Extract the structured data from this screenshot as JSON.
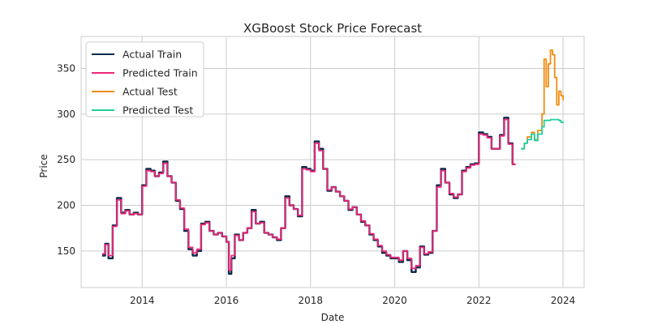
{
  "chart_data": {
    "type": "line",
    "title": "XGBoost Stock Price Forecast",
    "xlabel": "Date",
    "ylabel": "Price",
    "xlim": [
      2012.55,
      2024.5
    ],
    "ylim": [
      110,
      385
    ],
    "x_ticks": [
      2014,
      2016,
      2018,
      2020,
      2022,
      2024
    ],
    "y_ticks": [
      150,
      200,
      250,
      300,
      350
    ],
    "grid": true,
    "legend_position": "upper-left",
    "series": [
      {
        "name": "Actual Train",
        "color": "#0b2a4a",
        "x": [
          2013.05,
          2013.12,
          2013.2,
          2013.3,
          2013.4,
          2013.5,
          2013.6,
          2013.7,
          2013.8,
          2013.9,
          2014.0,
          2014.1,
          2014.2,
          2014.3,
          2014.4,
          2014.5,
          2014.6,
          2014.7,
          2014.8,
          2014.9,
          2015.0,
          2015.1,
          2015.2,
          2015.3,
          2015.4,
          2015.5,
          2015.6,
          2015.7,
          2015.8,
          2015.9,
          2016.0,
          2016.06,
          2016.12,
          2016.2,
          2016.3,
          2016.4,
          2016.5,
          2016.6,
          2016.7,
          2016.8,
          2016.9,
          2017.0,
          2017.1,
          2017.2,
          2017.3,
          2017.4,
          2017.5,
          2017.6,
          2017.7,
          2017.8,
          2017.9,
          2018.0,
          2018.1,
          2018.2,
          2018.3,
          2018.4,
          2018.5,
          2018.6,
          2018.7,
          2018.8,
          2018.9,
          2019.0,
          2019.1,
          2019.2,
          2019.3,
          2019.4,
          2019.5,
          2019.6,
          2019.7,
          2019.8,
          2019.9,
          2020.0,
          2020.1,
          2020.2,
          2020.3,
          2020.4,
          2020.5,
          2020.6,
          2020.7,
          2020.8,
          2020.9,
          2021.0,
          2021.1,
          2021.2,
          2021.3,
          2021.4,
          2021.5,
          2021.6,
          2021.7,
          2021.8,
          2021.9,
          2022.0,
          2022.1,
          2022.2,
          2022.3,
          2022.4,
          2022.5,
          2022.6,
          2022.7,
          2022.8,
          2022.86
        ],
        "y": [
          145,
          158,
          142,
          178,
          208,
          192,
          195,
          190,
          192,
          190,
          222,
          240,
          238,
          232,
          236,
          248,
          232,
          225,
          205,
          196,
          172,
          152,
          145,
          150,
          180,
          182,
          172,
          168,
          170,
          166,
          160,
          125,
          142,
          168,
          162,
          170,
          175,
          195,
          180,
          182,
          170,
          168,
          165,
          162,
          175,
          210,
          200,
          196,
          188,
          242,
          240,
          238,
          270,
          262,
          240,
          216,
          220,
          215,
          210,
          205,
          195,
          198,
          190,
          182,
          178,
          168,
          162,
          155,
          148,
          145,
          142,
          142,
          138,
          150,
          140,
          127,
          132,
          155,
          146,
          148,
          172,
          222,
          240,
          225,
          212,
          208,
          212,
          238,
          242,
          245,
          246,
          280,
          278,
          275,
          262,
          262,
          277,
          296,
          268,
          245,
          245
        ]
      },
      {
        "name": "Predicted Train",
        "color": "#f0267a",
        "x": [
          2013.05,
          2013.12,
          2013.2,
          2013.3,
          2013.4,
          2013.5,
          2013.6,
          2013.7,
          2013.8,
          2013.9,
          2014.0,
          2014.1,
          2014.2,
          2014.3,
          2014.4,
          2014.5,
          2014.6,
          2014.7,
          2014.8,
          2014.9,
          2015.0,
          2015.1,
          2015.2,
          2015.3,
          2015.4,
          2015.5,
          2015.6,
          2015.7,
          2015.8,
          2015.9,
          2016.0,
          2016.06,
          2016.12,
          2016.2,
          2016.3,
          2016.4,
          2016.5,
          2016.6,
          2016.7,
          2016.8,
          2016.9,
          2017.0,
          2017.1,
          2017.2,
          2017.3,
          2017.4,
          2017.5,
          2017.6,
          2017.7,
          2017.8,
          2017.9,
          2018.0,
          2018.1,
          2018.2,
          2018.3,
          2018.4,
          2018.5,
          2018.6,
          2018.7,
          2018.8,
          2018.9,
          2019.0,
          2019.1,
          2019.2,
          2019.3,
          2019.4,
          2019.5,
          2019.6,
          2019.7,
          2019.8,
          2019.9,
          2020.0,
          2020.1,
          2020.2,
          2020.3,
          2020.4,
          2020.5,
          2020.6,
          2020.7,
          2020.8,
          2020.9,
          2021.0,
          2021.1,
          2021.2,
          2021.3,
          2021.4,
          2021.5,
          2021.6,
          2021.7,
          2021.8,
          2021.9,
          2022.0,
          2022.1,
          2022.2,
          2022.3,
          2022.4,
          2022.5,
          2022.6,
          2022.7,
          2022.8,
          2022.86
        ],
        "y": [
          147,
          157,
          145,
          177,
          206,
          191,
          194,
          190,
          191,
          190,
          221,
          238,
          237,
          232,
          235,
          246,
          232,
          225,
          206,
          197,
          174,
          154,
          148,
          152,
          179,
          181,
          172,
          168,
          170,
          166,
          160,
          129,
          145,
          167,
          162,
          170,
          175,
          193,
          180,
          181,
          170,
          168,
          165,
          163,
          175,
          208,
          200,
          196,
          189,
          240,
          239,
          237,
          268,
          260,
          240,
          217,
          220,
          215,
          210,
          205,
          196,
          198,
          190,
          183,
          178,
          169,
          163,
          156,
          150,
          146,
          143,
          143,
          140,
          150,
          142,
          131,
          134,
          154,
          147,
          149,
          172,
          220,
          238,
          225,
          213,
          209,
          212,
          237,
          241,
          244,
          245,
          278,
          277,
          274,
          262,
          262,
          276,
          294,
          267,
          245,
          244
        ]
      },
      {
        "name": "Actual Test",
        "color": "#f28c0f",
        "x": [
          2023.0,
          2023.08,
          2023.15,
          2023.25,
          2023.32,
          2023.4,
          2023.5,
          2023.55,
          2023.6,
          2023.65,
          2023.7,
          2023.75,
          2023.8,
          2023.85,
          2023.9,
          2023.95,
          2024.0
        ],
        "y": [
          262,
          268,
          275,
          280,
          272,
          282,
          300,
          360,
          330,
          355,
          370,
          365,
          340,
          310,
          325,
          320,
          315
        ]
      },
      {
        "name": "Predicted Test",
        "color": "#1fcfa0",
        "x": [
          2023.0,
          2023.08,
          2023.15,
          2023.25,
          2023.32,
          2023.4,
          2023.5,
          2023.55,
          2023.6,
          2023.7,
          2023.8,
          2023.9,
          2023.95,
          2024.0
        ],
        "y": [
          262,
          268,
          272,
          278,
          271,
          278,
          286,
          293,
          293,
          294,
          294,
          293,
          291,
          290
        ]
      }
    ]
  }
}
